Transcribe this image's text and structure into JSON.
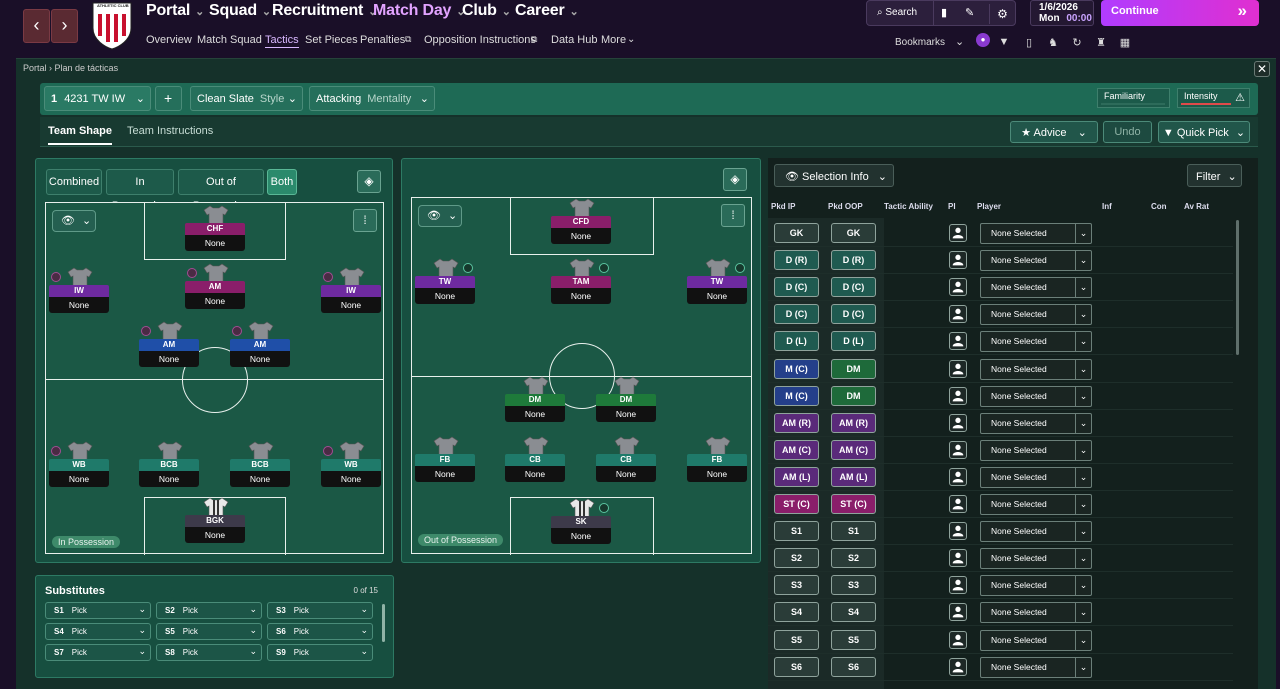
{
  "nav": {
    "back": "‹",
    "forward": "›",
    "crest_text": "ATHLETIC CLUB",
    "main": [
      "Portal",
      "Squad",
      "Recruitment",
      "Match Day",
      "Club",
      "Career"
    ],
    "sub": [
      "Overview",
      "Match Squad",
      "Tactics",
      "Set Pieces",
      "Penalties",
      "Opposition Instructions",
      "Data Hub",
      "More"
    ],
    "search": "Search",
    "bookmarks": "Bookmarks",
    "date": "1/6/2026",
    "day": "Mon",
    "time": "00:00",
    "continue": "Continue"
  },
  "panel": {
    "breadcrumb": [
      "Portal",
      "Plan de tácticas"
    ],
    "close": "✕"
  },
  "tactic": {
    "slot": "1",
    "formation": "4231 TW IW",
    "add": "+",
    "style_value": "Clean Slate",
    "style_label": "Style",
    "mentality_value": "Attacking",
    "mentality_label": "Mentality",
    "familiarity": "Familiarity",
    "intensity": "Intensity"
  },
  "tabs": [
    "Team Shape",
    "Team Instructions"
  ],
  "actions": {
    "advice": "Advice",
    "undo": "Undo",
    "quick_pick": "Quick Pick"
  },
  "phase_tabs": [
    "Combined",
    "In Possession",
    "Out of Possession",
    "Both"
  ],
  "pitch_in": {
    "label": "In Possession",
    "players": [
      {
        "role": "CHF",
        "name": "None",
        "color": "#8a1e6a"
      },
      {
        "role": "IW",
        "name": "None",
        "color": "#6e2aa0"
      },
      {
        "role": "AM",
        "name": "None",
        "color": "#8a1e6a"
      },
      {
        "role": "IW",
        "name": "None",
        "color": "#6e2aa0"
      },
      {
        "role": "AM",
        "name": "None",
        "color": "#1f4fa8"
      },
      {
        "role": "AM",
        "name": "None",
        "color": "#1f4fa8"
      },
      {
        "role": "WB",
        "name": "None",
        "color": "#1f7a6a"
      },
      {
        "role": "BCB",
        "name": "None",
        "color": "#1f7a6a"
      },
      {
        "role": "BCB",
        "name": "None",
        "color": "#1f7a6a"
      },
      {
        "role": "WB",
        "name": "None",
        "color": "#1f7a6a"
      },
      {
        "role": "BGK",
        "name": "None",
        "color": "#3d3a4a"
      }
    ]
  },
  "pitch_out": {
    "label": "Out of Possession",
    "players": [
      {
        "role": "CFD",
        "name": "None",
        "color": "#8a1e6a"
      },
      {
        "role": "TW",
        "name": "None",
        "color": "#6e2aa0"
      },
      {
        "role": "TAM",
        "name": "None",
        "color": "#8a1e6a"
      },
      {
        "role": "TW",
        "name": "None",
        "color": "#6e2aa0"
      },
      {
        "role": "DM",
        "name": "None",
        "color": "#1e7a3a"
      },
      {
        "role": "DM",
        "name": "None",
        "color": "#1e7a3a"
      },
      {
        "role": "FB",
        "name": "None",
        "color": "#1f7a6a"
      },
      {
        "role": "CB",
        "name": "None",
        "color": "#1f7a6a"
      },
      {
        "role": "CB",
        "name": "None",
        "color": "#1f7a6a"
      },
      {
        "role": "FB",
        "name": "None",
        "color": "#1f7a6a"
      },
      {
        "role": "SK",
        "name": "None",
        "color": "#3d3a4a"
      }
    ]
  },
  "substitutes": {
    "title": "Substitutes",
    "count": "0 of 15",
    "slots": [
      {
        "id": "S1",
        "value": "Pick"
      },
      {
        "id": "S2",
        "value": "Pick"
      },
      {
        "id": "S3",
        "value": "Pick"
      },
      {
        "id": "S4",
        "value": "Pick"
      },
      {
        "id": "S5",
        "value": "Pick"
      },
      {
        "id": "S6",
        "value": "Pick"
      },
      {
        "id": "S7",
        "value": "Pick"
      },
      {
        "id": "S8",
        "value": "Pick"
      },
      {
        "id": "S9",
        "value": "Pick"
      }
    ]
  },
  "selection": {
    "title": "Selection Info",
    "filter": "Filter",
    "headers": [
      "Pkd IP",
      "Pkd OOP",
      "Tactic Ability",
      "PI",
      "Player",
      "Inf",
      "Con",
      "Av Rat"
    ],
    "rows": [
      {
        "ip": "GK",
        "oop": "GK",
        "player": "None Selected",
        "ip_color": "#2a3c38",
        "oop_color": "#2a3c38"
      },
      {
        "ip": "D (R)",
        "oop": "D (R)",
        "player": "None Selected",
        "ip_color": "#1f5a50",
        "oop_color": "#1f5a50"
      },
      {
        "ip": "D (C)",
        "oop": "D (C)",
        "player": "None Selected",
        "ip_color": "#1f5a50",
        "oop_color": "#1f5a50"
      },
      {
        "ip": "D (C)",
        "oop": "D (C)",
        "player": "None Selected",
        "ip_color": "#1f5a50",
        "oop_color": "#1f5a50"
      },
      {
        "ip": "D (L)",
        "oop": "D (L)",
        "player": "None Selected",
        "ip_color": "#1f5a50",
        "oop_color": "#1f5a50"
      },
      {
        "ip": "M (C)",
        "oop": "DM",
        "player": "None Selected",
        "ip_color": "#243f8a",
        "oop_color": "#1e6a3a"
      },
      {
        "ip": "M (C)",
        "oop": "DM",
        "player": "None Selected",
        "ip_color": "#243f8a",
        "oop_color": "#1e6a3a"
      },
      {
        "ip": "AM (R)",
        "oop": "AM (R)",
        "player": "None Selected",
        "ip_color": "#5a2a7a",
        "oop_color": "#5a2a7a"
      },
      {
        "ip": "AM (C)",
        "oop": "AM (C)",
        "player": "None Selected",
        "ip_color": "#5a2a7a",
        "oop_color": "#5a2a7a"
      },
      {
        "ip": "AM (L)",
        "oop": "AM (L)",
        "player": "None Selected",
        "ip_color": "#5a2a7a",
        "oop_color": "#5a2a7a"
      },
      {
        "ip": "ST (C)",
        "oop": "ST (C)",
        "player": "None Selected",
        "ip_color": "#8a1e6a",
        "oop_color": "#8a1e6a"
      },
      {
        "ip": "S1",
        "oop": "S1",
        "player": "None Selected",
        "ip_color": "#2a3c38",
        "oop_color": "#2a3c38"
      },
      {
        "ip": "S2",
        "oop": "S2",
        "player": "None Selected",
        "ip_color": "#2a3c38",
        "oop_color": "#2a3c38"
      },
      {
        "ip": "S3",
        "oop": "S3",
        "player": "None Selected",
        "ip_color": "#2a3c38",
        "oop_color": "#2a3c38"
      },
      {
        "ip": "S4",
        "oop": "S4",
        "player": "None Selected",
        "ip_color": "#2a3c38",
        "oop_color": "#2a3c38"
      },
      {
        "ip": "S5",
        "oop": "S5",
        "player": "None Selected",
        "ip_color": "#2a3c38",
        "oop_color": "#2a3c38"
      },
      {
        "ip": "S6",
        "oop": "S6",
        "player": "None Selected",
        "ip_color": "#2a3c38",
        "oop_color": "#2a3c38"
      }
    ]
  }
}
